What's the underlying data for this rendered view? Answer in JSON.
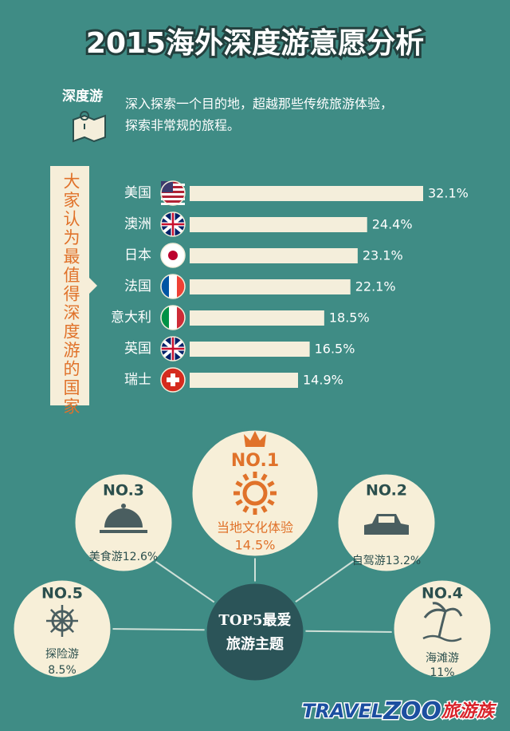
{
  "header": {
    "title": "2015海外深度游意愿分析",
    "tag": "深度游",
    "description": [
      "深入探索一个目的地，超越那些传统旅游体验，",
      "探索非常规的旅程。"
    ]
  },
  "chart_data": {
    "type": "bar",
    "orientation": "horizontal",
    "side_label": "大家认为最值得深度游的国家",
    "categories": [
      "美国",
      "澳洲",
      "日本",
      "法国",
      "意大利",
      "英国",
      "瑞士"
    ],
    "values": [
      32.1,
      24.4,
      23.1,
      22.1,
      18.5,
      16.5,
      14.9
    ],
    "value_labels": [
      "32.1%",
      "24.4%",
      "23.1%",
      "22.1%",
      "18.5%",
      "16.5%",
      "14.9%"
    ],
    "color": "#f4eedb"
  },
  "top5": {
    "center": [
      "TOP5最爱",
      "旅游主题"
    ],
    "items": [
      {
        "rank": "NO.1",
        "name": "当地文化体验",
        "value": "14.5%"
      },
      {
        "rank": "NO.2",
        "name": "自驾游",
        "value": "13.2%"
      },
      {
        "rank": "NO.3",
        "name": "美食游",
        "value": "12.6%"
      },
      {
        "rank": "NO.4",
        "name": "海滩游",
        "value": "11%"
      },
      {
        "rank": "NO.5",
        "name": "探险游",
        "value": "8.5%"
      }
    ]
  },
  "footer": {
    "logo": [
      "TRAVEL",
      "ZOO",
      "旅游族"
    ]
  }
}
